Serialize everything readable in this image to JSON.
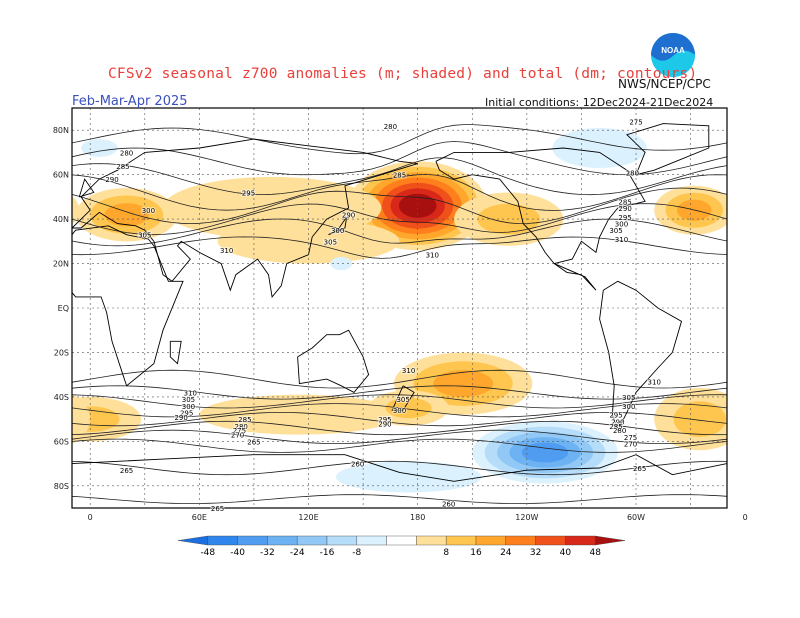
{
  "header": {
    "title": "CFSv2 seasonal z700 anomalies (m; shaded) and total (dm; contours)",
    "agency": "NWS/NCEP/CPC",
    "logo_text": "NOAA",
    "period": "Feb-Mar-Apr 2025",
    "initial_conditions": "Initial conditions: 12Dec2024-21Dec2024"
  },
  "map": {
    "projection": "cylindrical-equidistant",
    "lon_range": [
      -10,
      350
    ],
    "lat_range": [
      -90,
      90
    ],
    "dashed_grid": "on",
    "lat_ticks": [
      "80N",
      "60N",
      "40N",
      "20N",
      "EQ",
      "20S",
      "40S",
      "60S",
      "80S"
    ],
    "lon_ticks": [
      "0",
      "60E",
      "120E",
      "180",
      "120W",
      "60W",
      "0"
    ],
    "contour_labels": [
      {
        "text": "280",
        "lon": 165,
        "lat": 82
      },
      {
        "text": "275",
        "lon": 300,
        "lat": 84
      },
      {
        "text": "280",
        "lon": 20,
        "lat": 70
      },
      {
        "text": "285",
        "lon": 18,
        "lat": 64
      },
      {
        "text": "290",
        "lon": 12,
        "lat": 58
      },
      {
        "text": "295",
        "lon": 87,
        "lat": 52
      },
      {
        "text": "285",
        "lon": 170,
        "lat": 60
      },
      {
        "text": "290",
        "lon": 142,
        "lat": 42
      },
      {
        "text": "300",
        "lon": 32,
        "lat": 44
      },
      {
        "text": "300",
        "lon": 136,
        "lat": 35
      },
      {
        "text": "305",
        "lon": 132,
        "lat": 30
      },
      {
        "text": "305",
        "lon": 30,
        "lat": 33
      },
      {
        "text": "310",
        "lon": 75,
        "lat": 26
      },
      {
        "text": "310",
        "lon": 188,
        "lat": 24
      },
      {
        "text": "280",
        "lon": 298,
        "lat": 61
      },
      {
        "text": "285",
        "lon": 294,
        "lat": 48
      },
      {
        "text": "290",
        "lon": 294,
        "lat": 45
      },
      {
        "text": "295",
        "lon": 294,
        "lat": 41
      },
      {
        "text": "300",
        "lon": 292,
        "lat": 38
      },
      {
        "text": "305",
        "lon": 289,
        "lat": 35
      },
      {
        "text": "310",
        "lon": 292,
        "lat": 31
      },
      {
        "text": "310",
        "lon": 175,
        "lat": -28
      },
      {
        "text": "310",
        "lon": 310,
        "lat": -33
      },
      {
        "text": "310",
        "lon": 55,
        "lat": -38
      },
      {
        "text": "305",
        "lon": 54,
        "lat": -41
      },
      {
        "text": "300",
        "lon": 54,
        "lat": -44
      },
      {
        "text": "295",
        "lon": 53,
        "lat": -47
      },
      {
        "text": "290",
        "lon": 50,
        "lat": -49
      },
      {
        "text": "305",
        "lon": 172,
        "lat": -41
      },
      {
        "text": "300",
        "lon": 170,
        "lat": -46
      },
      {
        "text": "295",
        "lon": 162,
        "lat": -50
      },
      {
        "text": "290",
        "lon": 162,
        "lat": -52
      },
      {
        "text": "285",
        "lon": 85,
        "lat": -50
      },
      {
        "text": "280",
        "lon": 83,
        "lat": -53
      },
      {
        "text": "275",
        "lon": 82,
        "lat": -55
      },
      {
        "text": "270",
        "lon": 81,
        "lat": -57
      },
      {
        "text": "265",
        "lon": 90,
        "lat": -60
      },
      {
        "text": "305",
        "lon": 296,
        "lat": -40
      },
      {
        "text": "300",
        "lon": 296,
        "lat": -44
      },
      {
        "text": "295",
        "lon": 289,
        "lat": -48
      },
      {
        "text": "290",
        "lon": 290,
        "lat": -51
      },
      {
        "text": "285",
        "lon": 289,
        "lat": -53
      },
      {
        "text": "280",
        "lon": 291,
        "lat": -55
      },
      {
        "text": "275",
        "lon": 297,
        "lat": -58
      },
      {
        "text": "270",
        "lon": 297,
        "lat": -61
      },
      {
        "text": "265",
        "lon": 302,
        "lat": -72
      },
      {
        "text": "265",
        "lon": 20,
        "lat": -73
      },
      {
        "text": "260",
        "lon": 147,
        "lat": -70
      },
      {
        "text": "260",
        "lon": 197,
        "lat": -88
      },
      {
        "text": "265",
        "lon": 70,
        "lat": -90
      }
    ],
    "anomaly_features": [
      {
        "kind": "positive",
        "lon": 180,
        "lat": 46,
        "rx": 38,
        "ry": 20,
        "peak": 56
      },
      {
        "kind": "positive",
        "lon": 20,
        "lat": 42,
        "rx": 28,
        "ry": 12,
        "peak": 30
      },
      {
        "kind": "positive",
        "lon": 332,
        "lat": 44,
        "rx": 22,
        "ry": 11,
        "peak": 30
      },
      {
        "kind": "positive",
        "lon": 230,
        "lat": 40,
        "rx": 30,
        "ry": 12,
        "peak": 16
      },
      {
        "kind": "positive",
        "lon": 100,
        "lat": 45,
        "rx": 60,
        "ry": 14,
        "peak": 14
      },
      {
        "kind": "positive",
        "lon": 120,
        "lat": 30,
        "rx": 50,
        "ry": 10,
        "peak": 12
      },
      {
        "kind": "positive",
        "lon": 205,
        "lat": -34,
        "rx": 38,
        "ry": 14,
        "peak": 24
      },
      {
        "kind": "positive",
        "lon": 0,
        "lat": -50,
        "rx": 28,
        "ry": 10,
        "peak": 22
      },
      {
        "kind": "positive",
        "lon": 115,
        "lat": -48,
        "rx": 55,
        "ry": 9,
        "peak": 14
      },
      {
        "kind": "positive",
        "lon": 335,
        "lat": -50,
        "rx": 25,
        "ry": 14,
        "peak": 22
      },
      {
        "kind": "positive",
        "lon": 175,
        "lat": -45,
        "rx": 22,
        "ry": 8,
        "peak": 16
      },
      {
        "kind": "negative",
        "lon": 250,
        "lat": -65,
        "rx": 40,
        "ry": 14,
        "peak": -40
      },
      {
        "kind": "negative",
        "lon": 175,
        "lat": -76,
        "rx": 40,
        "ry": 7,
        "peak": -14
      },
      {
        "kind": "negative",
        "lon": 280,
        "lat": 72,
        "rx": 26,
        "ry": 9,
        "peak": -12
      },
      {
        "kind": "negative",
        "lon": 5,
        "lat": 72,
        "rx": 10,
        "ry": 4,
        "peak": -10
      },
      {
        "kind": "negative",
        "lon": 138,
        "lat": 20,
        "rx": 6,
        "ry": 3,
        "peak": -10
      }
    ]
  },
  "colorbar": {
    "labels": [
      "-48",
      "-40",
      "-32",
      "-24",
      "-16",
      "-8",
      "8",
      "16",
      "24",
      "32",
      "40",
      "48"
    ],
    "colors": [
      "#1c6fe0",
      "#2f86ec",
      "#4f9cf0",
      "#6db2f3",
      "#91c8f6",
      "#b5dcf9",
      "#dbf1fd",
      "#ffffff",
      "#ffe09a",
      "#ffc64f",
      "#ffa72c",
      "#ff7f1c",
      "#f0501a",
      "#d8281a",
      "#a81010"
    ]
  },
  "colors": {
    "title_red": "#e8413b",
    "period_blue": "#3a4fc0",
    "logo_blue": "#1e6fd0",
    "logo_cyan": "#1ec8e8"
  }
}
